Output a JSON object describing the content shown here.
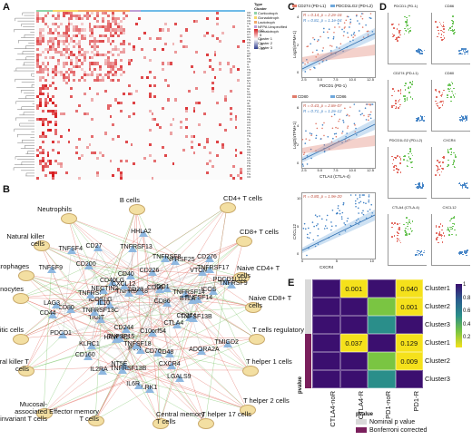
{
  "panels": {
    "a": {
      "label": "A",
      "legend": {
        "type_title": "Type",
        "cluster_title": "Cluster",
        "types": [
          {
            "name": "Corticotroph",
            "color": "#8fd3a8"
          },
          {
            "name": "Gonadotroph",
            "color": "#f6d86b"
          },
          {
            "name": "Lactotroph",
            "color": "#f2a86a"
          },
          {
            "name": "NFPA Unspecified",
            "color": "#bfa0d6"
          },
          {
            "name": "Somatotroph",
            "color": "#6fbbe8"
          }
        ],
        "clusters": [
          {
            "name": "Cluster 1",
            "color": "#f28c8c"
          },
          {
            "name": "Cluster 2",
            "color": "#8fd3a8"
          },
          {
            "name": "Cluster 3",
            "color": "#6fa8e8"
          }
        ],
        "scale_ticks": [
          "10",
          "5",
          "0",
          "-5",
          "-10"
        ]
      },
      "gene_labels": [
        "CD",
        "MH",
        "TN",
        "CD",
        "TN",
        "IL",
        "CD",
        "PD",
        "CT",
        "HA",
        "TN",
        "CD",
        "LA",
        "TI",
        "IC",
        "CD",
        "BT",
        "TN",
        "CD",
        "IL",
        "KI",
        "TN",
        "CD",
        "VT",
        "CD",
        "NT",
        "TN",
        "CD",
        "SI",
        "KL",
        "CD",
        "LG",
        "TN",
        "ID",
        "CD",
        "TM",
        "TN",
        "CD",
        "HH",
        "TN",
        "CD",
        "CX",
        "TN",
        "PV",
        "CD",
        "TN",
        "IL",
        "CD",
        "KI",
        "TN",
        "CD",
        "CD",
        "TN",
        "LA",
        "CD",
        "TN",
        "PD",
        "CD",
        "CT",
        "TN",
        "CD"
      ]
    },
    "b": {
      "label": "B",
      "cell_types": [
        "Neutrophils",
        "B cells",
        "CD4+ T cells",
        "Natural killer cells",
        "CD8+ T cells",
        "Macrophages",
        "Naive CD4+ T cells",
        "Monocytes",
        "Naive CD8+ T cells",
        "Dendritic cells",
        "T cells regulatory",
        "Natural killer T cells",
        "T helper 1 cells",
        "Mucosal-associated invariant T cells",
        "T helper 2 cells",
        "Effector memory T cells",
        "Central memory T cells",
        "T helper 17 cells"
      ],
      "genes": [
        "HAVCR2",
        "TNFRSF14",
        "CD40LG",
        "BTLA",
        "KLRC1",
        "ICOS",
        "CD160",
        "TNFRSF18",
        "VTCN1",
        "CD96",
        "PVR",
        "TNFRSF25",
        "CD226",
        "IL2RA",
        "ADORA2A",
        "CD80",
        "NT5E",
        "CD274",
        "CD244",
        "TIGIT",
        "PDCD1LG2",
        "ICOSLG",
        "LGALS9",
        "CXCR4",
        "TNFRSF4",
        "CD28",
        "TMIGD2",
        "CD27",
        "TNFSF9",
        "CD86",
        "KLRK1",
        "TNFRSF9",
        "CD48",
        "IL10",
        "CD70",
        "TNFSF13B",
        "TNFSF14",
        "CD200",
        "IDO1",
        "TNFRSF8",
        "TNFSF4",
        "CTLA4",
        "PDCD1",
        "LAG3",
        "TNFRSF17",
        "C10orf54",
        "NECTIN2",
        "CD40",
        "TNFSF15",
        "IL6R",
        "CD276",
        "TNFSF18",
        "HHLA2",
        "CXCL12",
        "TNFRSF13B",
        "CD44",
        "TNFRSF13C",
        "TNFRSF13"
      ]
    },
    "c": {
      "label": "C",
      "plots": [
        {
          "legend": [
            "CD274 (PD-L1)",
            "PDCD1LG2 (PD-L2)"
          ],
          "stats": [
            "R = 0.14, p = 2.2e-16",
            "R = 0.81, p = 1.1e-04"
          ],
          "xlabel": "PDCD1 (PD-1)",
          "ylabel": "Log2(nTPM+1)",
          "xticks": [
            "2.5",
            "5.0",
            "7.5",
            "10.0",
            "12.5"
          ],
          "yticks": [
            "0",
            "2",
            "4"
          ]
        },
        {
          "legend": [
            "CD80",
            "CD86"
          ],
          "stats": [
            "R = 0.43, p = 2.8e-07",
            "R = 0.71, p = 1.2e-12"
          ],
          "xlabel": "CTLA4 (CTLA-4)",
          "ylabel": "Log2(nTPM+1)",
          "xticks": [
            "2.5",
            "5.0",
            "7.5",
            "10.0",
            "12.5"
          ],
          "yticks": [
            "0",
            "2",
            "4",
            "6"
          ]
        },
        {
          "legend": [],
          "stats": [
            "R = 0.80, p = 1.9e-20"
          ],
          "xlabel": "CXCR4",
          "ylabel": "CXCL12",
          "xticks": [
            "0",
            "5",
            "10"
          ],
          "yticks": [
            "0",
            "5",
            "10"
          ]
        }
      ]
    },
    "d": {
      "label": "D",
      "subplots": [
        "PDCD1 (PD-1)",
        "CD86",
        "CD274 (PD-L1)",
        "CD80",
        "PDCD1LG2 (PD-L2)",
        "CXCR4",
        "CTLA4 (CTLA-4)",
        "CXCL12"
      ]
    },
    "e": {
      "label": "E",
      "rows": [
        "Cluster1",
        "Cluster2",
        "Cluster3",
        "Cluster1",
        "Cluster2",
        "Cluster3"
      ],
      "columns": [
        "CTLA4-noR",
        "CTLA4-R",
        "PD1-noR",
        "PD1-R"
      ],
      "row_label": "pvalue",
      "cells": [
        [
          {
            "value": "",
            "color": "#3b0f6f"
          },
          {
            "value": "0.001",
            "color": "#f5e11b"
          },
          {
            "value": "",
            "color": "#3b0f6f"
          },
          {
            "value": "0.040",
            "color": "#f5e11b"
          }
        ],
        [
          {
            "value": "",
            "color": "#3b0f6f"
          },
          {
            "value": "",
            "color": "#3b0f6f"
          },
          {
            "value": "",
            "color": "#7ac542"
          },
          {
            "value": "0.001",
            "color": "#f5e11b"
          }
        ],
        [
          {
            "value": "",
            "color": "#3b0f6f"
          },
          {
            "value": "",
            "color": "#3b0f6f"
          },
          {
            "value": "",
            "color": "#2a8e8a"
          },
          {
            "value": "",
            "color": "#3b0f6f"
          }
        ],
        [
          {
            "value": "",
            "color": "#3b0f6f"
          },
          {
            "value": "0.037",
            "color": "#f5e11b"
          },
          {
            "value": "",
            "color": "#3b0f6f"
          },
          {
            "value": "0.129",
            "color": "#f5e11b"
          }
        ],
        [
          {
            "value": "",
            "color": "#3b0f6f"
          },
          {
            "value": "",
            "color": "#3b0f6f"
          },
          {
            "value": "",
            "color": "#7ac542"
          },
          {
            "value": "0.009",
            "color": "#f5e11b"
          }
        ],
        [
          {
            "value": "",
            "color": "#3b0f6f"
          },
          {
            "value": "",
            "color": "#3b0f6f"
          },
          {
            "value": "",
            "color": "#2a8e8a"
          },
          {
            "value": "",
            "color": "#3b0f6f"
          }
        ]
      ],
      "colorbar_ticks": [
        "1",
        "0.8",
        "0.6",
        "0.4",
        "0.2"
      ],
      "legend_title": "pvalue",
      "legend_items": [
        {
          "label": "Nominal p value",
          "color": "#d9d9d9"
        },
        {
          "label": "Bonferroni corrected",
          "color": "#7a1f5c"
        }
      ]
    }
  }
}
